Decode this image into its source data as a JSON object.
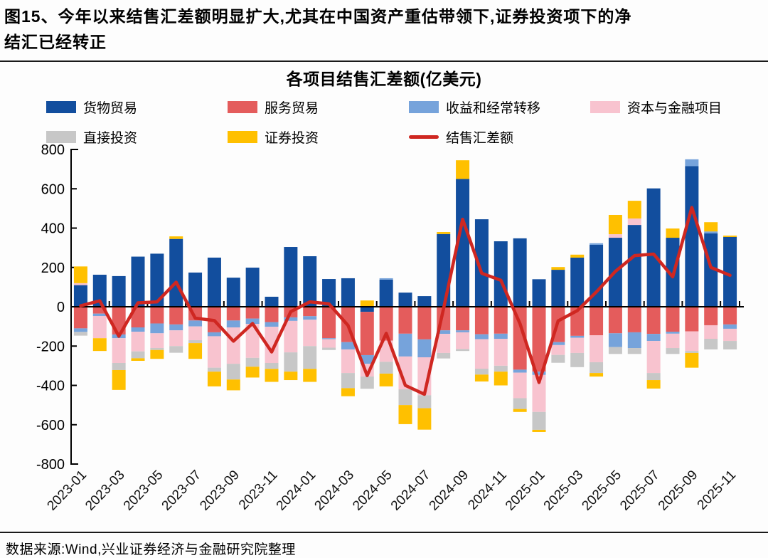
{
  "caption": {
    "line1": "图15、今年以来结售汇差额明显扩大,尤其在中国资产重估带领下,证券投资项下的净",
    "line2": "结汇已经转正"
  },
  "source": "数据来源:Wind,兴业证券经济与金融研究院整理",
  "chart_data": {
    "type": "bar",
    "subtype": "stacked-bars-with-line-overlay",
    "title": "各项目结售汇差额(亿美元)",
    "unit": "亿美元",
    "grid": false,
    "legend_position": "top",
    "ylim": [
      -800,
      800
    ],
    "ytick_step": 200,
    "y_tick_labels": [
      "800",
      "600",
      "400",
      "200",
      "0",
      "-200",
      "-400",
      "-600",
      "-800"
    ],
    "x_tick_interval": 2,
    "categories": [
      "2023-01",
      "2023-02",
      "2023-03",
      "2023-04",
      "2023-05",
      "2023-06",
      "2023-07",
      "2023-08",
      "2023-09",
      "2023-10",
      "2023-11",
      "2023-12",
      "2024-01",
      "2024-02",
      "2024-03",
      "2024-04",
      "2024-05",
      "2024-06",
      "2024-07",
      "2024-08",
      "2024-09",
      "2024-10",
      "2024-11",
      "2024-12",
      "2025-01",
      "2025-02",
      "2025-03",
      "2025-04",
      "2025-05",
      "2025-06",
      "2025-07",
      "2025-08",
      "2025-09",
      "2025-10",
      "2025-11"
    ],
    "series": [
      {
        "name": "货物贸易",
        "color": "#124E9E",
        "values": [
          110,
          163,
          156,
          255,
          270,
          345,
          174,
          250,
          148,
          199,
          51,
          304,
          257,
          141,
          145,
          -26,
          138,
          72,
          54,
          370,
          650,
          445,
          333,
          348,
          140,
          188,
          250,
          315,
          351,
          416,
          602,
          351,
          715,
          373,
          355
        ]
      },
      {
        "name": "服务贸易",
        "color": "#E45C5C",
        "values": [
          -110,
          -35,
          -141,
          -105,
          -85,
          -90,
          -70,
          -130,
          -70,
          -60,
          -78,
          -54,
          -48,
          -160,
          -180,
          -220,
          -172,
          -137,
          -166,
          -120,
          -120,
          -140,
          -137,
          -320,
          -330,
          -180,
          -148,
          -145,
          -135,
          -130,
          -138,
          -127,
          -125,
          -94,
          -90
        ]
      },
      {
        "name": "收益和经常转移",
        "color": "#76A3DB",
        "values": [
          -18,
          -12,
          -19,
          -22,
          -50,
          -30,
          -30,
          -20,
          -35,
          -27,
          -24,
          -18,
          -18,
          -5,
          -37,
          -44,
          7,
          -116,
          -91,
          -18,
          -10,
          -25,
          -26,
          -15,
          -17,
          -15,
          -10,
          8,
          -70,
          -80,
          -36,
          -10,
          35,
          10,
          -22
        ]
      },
      {
        "name": "资本与金融项目",
        "color": "#F8C3CF",
        "values": [
          10,
          -113,
          -126,
          -100,
          -75,
          -80,
          -70,
          -160,
          -185,
          -173,
          -184,
          -160,
          -134,
          -43,
          -120,
          -65,
          -108,
          -167,
          -193,
          -97,
          -85,
          -150,
          -137,
          -130,
          -188,
          -50,
          -77,
          -137,
          18,
          33,
          -163,
          -73,
          -100,
          -69,
          -62
        ]
      },
      {
        "name": "直接投资",
        "color": "#C7C7C7",
        "values": [
          -19,
          0,
          -36,
          -35,
          -10,
          -34,
          -15,
          -20,
          -80,
          -45,
          -30,
          -98,
          -116,
          -12,
          -77,
          -62,
          -60,
          -80,
          -66,
          -28,
          -10,
          -30,
          -30,
          -55,
          -91,
          -40,
          -72,
          -55,
          -35,
          -30,
          -36,
          -30,
          -10,
          -54,
          -43
        ]
      },
      {
        "name": "证券投资",
        "color": "#FFC000",
        "values": [
          85,
          -65,
          -101,
          -13,
          -45,
          13,
          -80,
          -75,
          -55,
          -55,
          -66,
          -43,
          -66,
          0,
          -41,
          32,
          -65,
          -97,
          -109,
          10,
          95,
          -35,
          -70,
          -15,
          -11,
          14,
          15,
          -18,
          98,
          90,
          -43,
          47,
          -75,
          47,
          7
        ]
      }
    ],
    "line_series": {
      "name": "结售汇差额",
      "color": "#CF2721",
      "values": [
        5,
        30,
        -150,
        20,
        25,
        125,
        -58,
        -70,
        -175,
        -85,
        -230,
        -25,
        25,
        15,
        -95,
        -350,
        -135,
        -400,
        -445,
        -10,
        445,
        170,
        135,
        -85,
        -385,
        -72,
        -20,
        75,
        180,
        260,
        268,
        152,
        505,
        200,
        160
      ]
    }
  }
}
